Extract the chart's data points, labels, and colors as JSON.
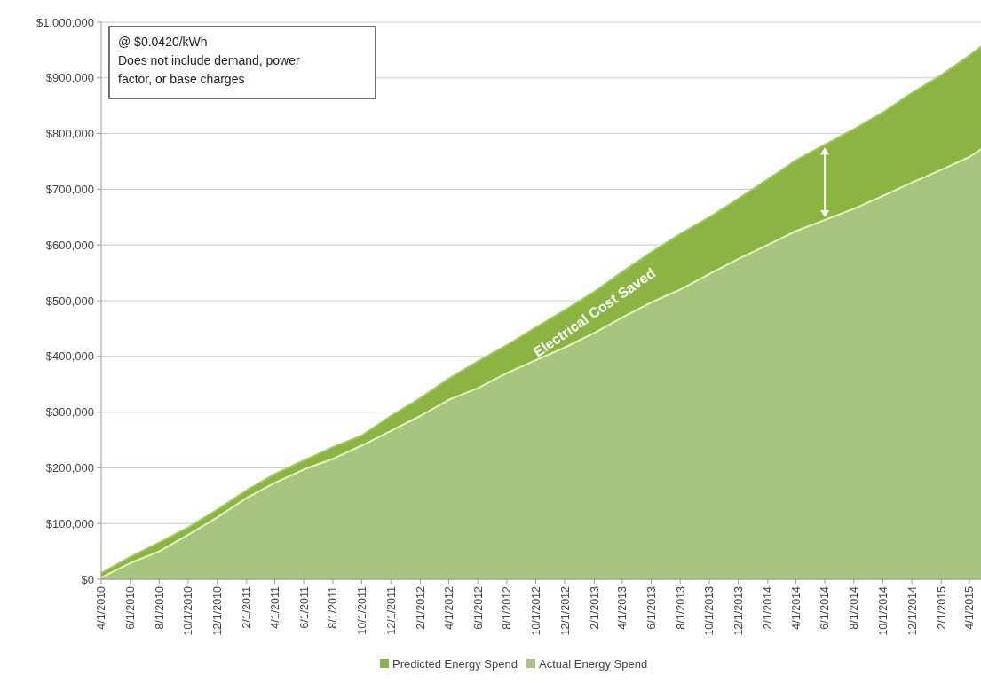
{
  "chart_data": {
    "type": "area",
    "x": [
      "2010-04",
      "2010-06",
      "2010-08",
      "2010-10",
      "2010-12",
      "2011-02",
      "2011-04",
      "2011-06",
      "2011-08",
      "2011-10",
      "2011-12",
      "2012-02",
      "2012-04",
      "2012-06",
      "2012-08",
      "2012-10",
      "2012-12",
      "2013-02",
      "2013-04",
      "2013-06",
      "2013-08",
      "2013-10",
      "2013-12",
      "2014-02",
      "2014-04",
      "2014-06",
      "2014-08",
      "2014-10",
      "2014-12",
      "2015-02",
      "2015-04",
      "2015-05"
    ],
    "series": [
      {
        "name": "Predicted Energy Spend",
        "color": "#8cb443",
        "values": [
          11000,
          40000,
          66000,
          93000,
          125000,
          160000,
          189000,
          213000,
          237000,
          258000,
          293000,
          325000,
          360000,
          391000,
          420000,
          452000,
          483000,
          516000,
          552000,
          587000,
          620000,
          650000,
          683000,
          718000,
          752000,
          780000,
          808000,
          838000,
          873000,
          905000,
          940000,
          960000
        ]
      },
      {
        "name": "Actual Energy Spend",
        "color": "#a9c47f",
        "values": [
          3000,
          29000,
          50000,
          80000,
          111000,
          146000,
          173000,
          197000,
          216000,
          240000,
          266000,
          293000,
          322000,
          343000,
          370000,
          393000,
          416000,
          442000,
          470000,
          497000,
          520000,
          548000,
          575000,
          600000,
          625000,
          645000,
          665000,
          688000,
          712000,
          735000,
          758000,
          775000
        ]
      }
    ],
    "xlim": [
      "2010-04",
      "2015-05"
    ],
    "xticks": [
      {
        "value": "2010-04",
        "label": "4/1/2010"
      },
      {
        "value": "2010-06",
        "label": "6/1/2010"
      },
      {
        "value": "2010-08",
        "label": "8/1/2010"
      },
      {
        "value": "2010-10",
        "label": "10/1/2010"
      },
      {
        "value": "2010-12",
        "label": "12/1/2010"
      },
      {
        "value": "2011-02",
        "label": "2/1/2011"
      },
      {
        "value": "2011-04",
        "label": "4/1/2011"
      },
      {
        "value": "2011-06",
        "label": "6/1/2011"
      },
      {
        "value": "2011-08",
        "label": "8/1/2011"
      },
      {
        "value": "2011-10",
        "label": "10/1/2011"
      },
      {
        "value": "2011-12",
        "label": "12/1/2011"
      },
      {
        "value": "2012-02",
        "label": "2/1/2012"
      },
      {
        "value": "2012-04",
        "label": "4/1/2012"
      },
      {
        "value": "2012-06",
        "label": "6/1/2012"
      },
      {
        "value": "2012-08",
        "label": "8/1/2012"
      },
      {
        "value": "2012-10",
        "label": "10/1/2012"
      },
      {
        "value": "2012-12",
        "label": "12/1/2012"
      },
      {
        "value": "2013-02",
        "label": "2/1/2013"
      },
      {
        "value": "2013-04",
        "label": "4/1/2013"
      },
      {
        "value": "2013-06",
        "label": "6/1/2013"
      },
      {
        "value": "2013-08",
        "label": "8/1/2013"
      },
      {
        "value": "2013-10",
        "label": "10/1/2013"
      },
      {
        "value": "2013-12",
        "label": "12/1/2013"
      },
      {
        "value": "2014-02",
        "label": "2/1/2014"
      },
      {
        "value": "2014-04",
        "label": "4/1/2014"
      },
      {
        "value": "2014-06",
        "label": "6/1/2014"
      },
      {
        "value": "2014-08",
        "label": "8/1/2014"
      },
      {
        "value": "2014-10",
        "label": "10/1/2014"
      },
      {
        "value": "2014-12",
        "label": "12/1/2014"
      },
      {
        "value": "2015-02",
        "label": "2/1/2015"
      },
      {
        "value": "2015-04",
        "label": "4/1/2015"
      }
    ],
    "ylim": [
      0,
      1000000
    ],
    "yticks": [
      {
        "value": 0,
        "label": "$0"
      },
      {
        "value": 100000,
        "label": "$100,000"
      },
      {
        "value": 200000,
        "label": "$200,000"
      },
      {
        "value": 300000,
        "label": "$300,000"
      },
      {
        "value": 400000,
        "label": "$400,000"
      },
      {
        "value": 500000,
        "label": "$500,000"
      },
      {
        "value": 600000,
        "label": "$600,000"
      },
      {
        "value": 700000,
        "label": "$700,000"
      },
      {
        "value": 800000,
        "label": "$800,000"
      },
      {
        "value": 900000,
        "label": "$900,000"
      },
      {
        "value": 1000000,
        "label": "$1,000,000"
      }
    ],
    "grid": "y",
    "legend": "bottom",
    "annotations": [
      "@ $0.0420/kWh\nDoes not include demand, power\nfactor, or base charges",
      "Electrical Cost Saved"
    ]
  }
}
